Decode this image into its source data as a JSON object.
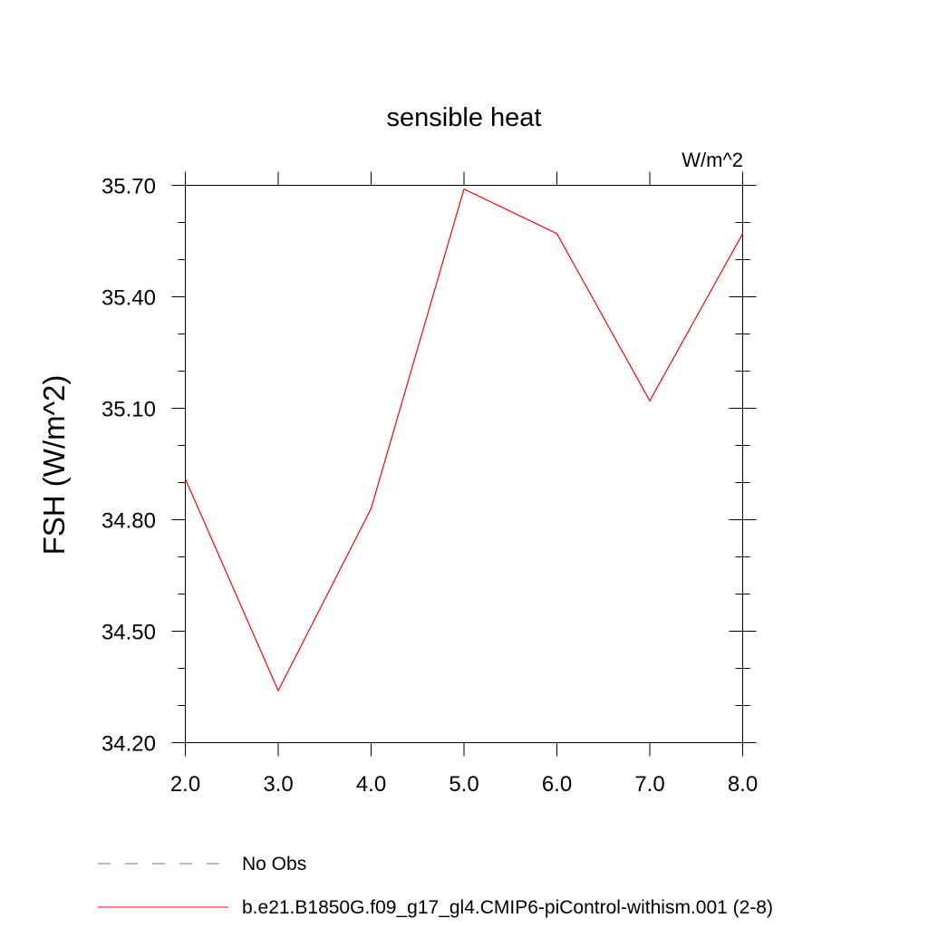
{
  "chart_data": {
    "type": "line",
    "title": "sensible heat",
    "units_label": "W/m^2",
    "ylabel": "FSH  (W/m^2)",
    "xlabel": "",
    "xlim": [
      2.0,
      8.0
    ],
    "ylim": [
      34.2,
      35.7
    ],
    "x_ticks": [
      2.0,
      3.0,
      4.0,
      5.0,
      6.0,
      7.0,
      8.0
    ],
    "x_tick_labels": [
      "2.0",
      "3.0",
      "4.0",
      "5.0",
      "6.0",
      "7.0",
      "8.0"
    ],
    "y_ticks": [
      34.2,
      34.5,
      34.8,
      35.1,
      35.4,
      35.7
    ],
    "y_tick_labels": [
      "34.20",
      "34.50",
      "34.80",
      "35.10",
      "35.40",
      "35.70"
    ],
    "grid": false,
    "legend_position": "bottom",
    "series": [
      {
        "name": "b.e21.B1850G.f09_g17_gl4.CMIP6-piControl-withism.001 (2-8)",
        "color": "#ff0000",
        "style": "solid",
        "x": [
          2,
          3,
          4,
          5,
          6,
          7,
          8
        ],
        "values": [
          34.91,
          34.34,
          34.83,
          35.69,
          35.57,
          35.12,
          35.57
        ]
      }
    ],
    "legend": [
      {
        "label": "No Obs",
        "color": "#7b68c8",
        "style": "dashed"
      },
      {
        "label": "b.e21.B1850G.f09_g17_gl4.CMIP6-piControl-withism.001 (2-8)",
        "color": "#ff0000",
        "style": "solid"
      }
    ]
  }
}
